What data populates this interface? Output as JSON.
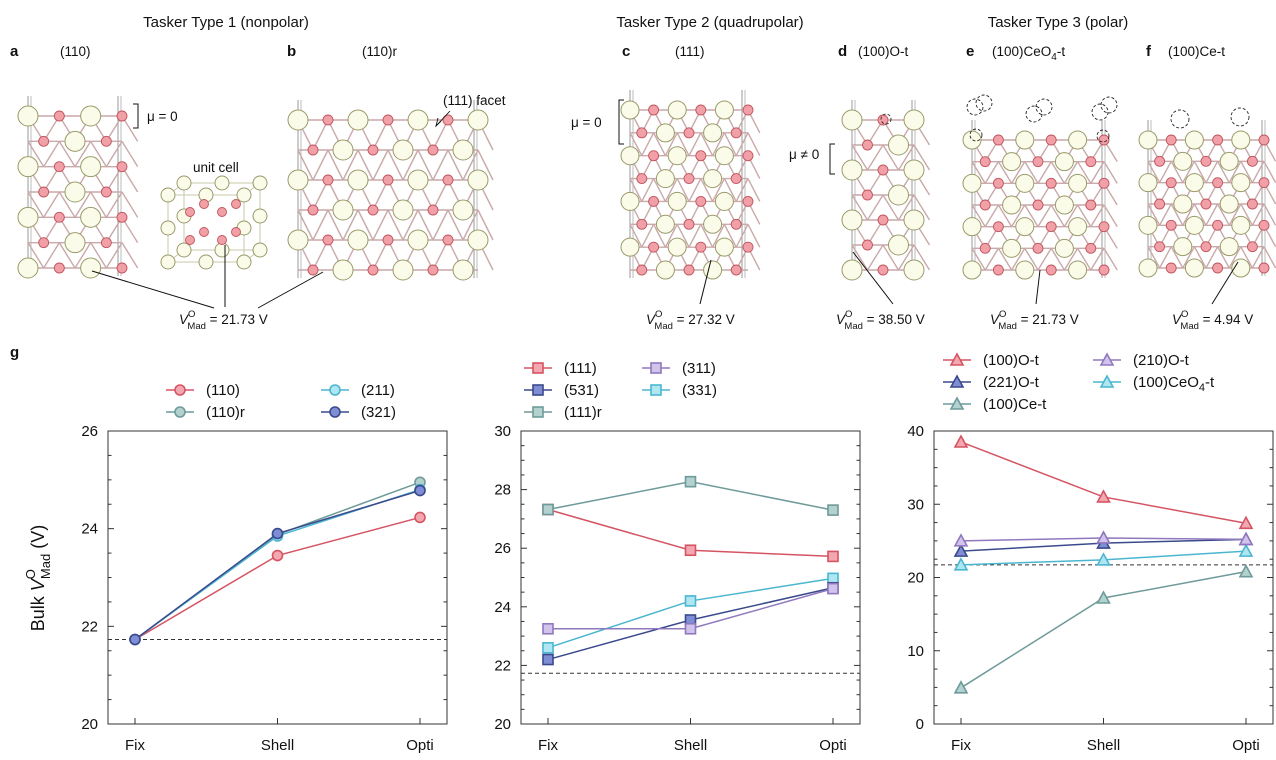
{
  "panel_top": {
    "group_titles": [
      "Tasker Type 1 (nonpolar)",
      "Tasker Type 2 (quadrupolar)",
      "Tasker Type 3 (polar)"
    ],
    "panels": [
      {
        "letter": "a",
        "surface": "(110)"
      },
      {
        "letter": "b",
        "surface": "(110)r"
      },
      {
        "letter": "c",
        "surface": "(111)"
      },
      {
        "letter": "d",
        "surface": "(100)O-t"
      },
      {
        "letter": "e",
        "surface": "(100)CeO",
        "surface_sub": "4",
        "surface_tail": "-t"
      },
      {
        "letter": "f",
        "surface": "(100)Ce-t"
      }
    ],
    "annotations": {
      "mu_zero": "μ = 0",
      "mu_nonzero": "μ ≠ 0",
      "unit_cell": "unit cell",
      "facet": "(111) facet"
    },
    "vmad_labels": [
      {
        "sym": "V",
        "sup": "O",
        "sub": "Mad",
        "value": " = 21.73 V"
      },
      {
        "sym": "V",
        "sup": "O",
        "sub": "Mad",
        "value": " = 27.32 V"
      },
      {
        "sym": "V",
        "sup": "O",
        "sub": "Mad",
        "value": " = 38.50 V"
      },
      {
        "sym": "V",
        "sup": "O",
        "sub": "Mad",
        "value": " = 21.73 V"
      },
      {
        "sym": "V",
        "sup": "O",
        "sub": "Mad",
        "value": " = 4.94 V"
      }
    ]
  },
  "panel_g_letter": "g",
  "colors": {
    "red": "#d55462",
    "red_fill": "#f3a7b0",
    "teal": "#6e9a9a",
    "teal_fill": "#b3d1cf",
    "cyan": "#4bb6cf",
    "cyan_fill": "#aee6f2",
    "navy": "#3a4a8c",
    "navy_fill": "#7f8ed4",
    "purple": "#8f78bd",
    "purple_fill": "#d2c3ec",
    "o_atom": "#f0a0a6",
    "ce_atom": "#fbfbea"
  },
  "chart_data": [
    {
      "type": "line",
      "categories": [
        "Fix",
        "Shell",
        "Opti"
      ],
      "ylabel": "Bulk V_Mad^O (V)",
      "ylabel_parts": {
        "pre": "Bulk ",
        "sym": "V",
        "sup": "O",
        "sub": "Mad",
        "post": " (V)"
      },
      "ylim": [
        20,
        26
      ],
      "yticks": [
        "20",
        "22",
        "24",
        "26"
      ],
      "reference_line": 21.73,
      "marker": "circle",
      "series": [
        {
          "name": "(110)",
          "values": [
            21.73,
            23.45,
            24.23
          ],
          "color": "red"
        },
        {
          "name": "(110)r",
          "values": [
            21.73,
            23.88,
            24.95
          ],
          "color": "teal"
        },
        {
          "name": "(211)",
          "values": [
            21.73,
            23.85,
            24.8
          ],
          "color": "cyan"
        },
        {
          "name": "(321)",
          "values": [
            21.73,
            23.9,
            24.78
          ],
          "color": "navy"
        }
      ],
      "legend_order": [
        0,
        2,
        1,
        3
      ]
    },
    {
      "type": "line",
      "categories": [
        "Fix",
        "Shell",
        "Opti"
      ],
      "ylim": [
        20,
        30
      ],
      "yticks": [
        "20",
        "22",
        "24",
        "26",
        "28",
        "30"
      ],
      "reference_line": 21.73,
      "marker": "square",
      "series": [
        {
          "name": "(111)",
          "values": [
            27.32,
            25.93,
            25.72
          ],
          "color": "red"
        },
        {
          "name": "(111)r",
          "values": [
            27.32,
            28.27,
            27.3
          ],
          "color": "teal"
        },
        {
          "name": "(331)",
          "values": [
            22.6,
            24.2,
            24.97
          ],
          "color": "cyan"
        },
        {
          "name": "(531)",
          "values": [
            22.2,
            23.55,
            24.65
          ],
          "color": "navy"
        },
        {
          "name": "(311)",
          "values": [
            23.25,
            23.25,
            24.62
          ],
          "color": "purple"
        }
      ],
      "legend_order": [
        0,
        3,
        1,
        4,
        2
      ]
    },
    {
      "type": "line",
      "categories": [
        "Fix",
        "Shell",
        "Opti"
      ],
      "ylim": [
        0,
        40
      ],
      "yticks": [
        "0",
        "10",
        "20",
        "30",
        "40"
      ],
      "reference_line": 21.73,
      "marker": "triangle",
      "series": [
        {
          "name": "(100)O-t",
          "values": [
            38.5,
            31.0,
            27.4
          ],
          "color": "red"
        },
        {
          "name": "(100)Ce-t",
          "values": [
            4.94,
            17.2,
            20.8
          ],
          "color": "teal"
        },
        {
          "name": "(100)CeO",
          "name_sub": "4",
          "name_tail": "-t",
          "values": [
            21.73,
            22.4,
            23.6
          ],
          "color": "cyan"
        },
        {
          "name": "(221)O-t",
          "values": [
            23.6,
            24.7,
            25.2
          ],
          "color": "navy"
        },
        {
          "name": "(210)O-t",
          "values": [
            25.0,
            25.4,
            25.2
          ],
          "color": "purple"
        }
      ],
      "legend_order": [
        0,
        3,
        1,
        4,
        2
      ]
    }
  ]
}
